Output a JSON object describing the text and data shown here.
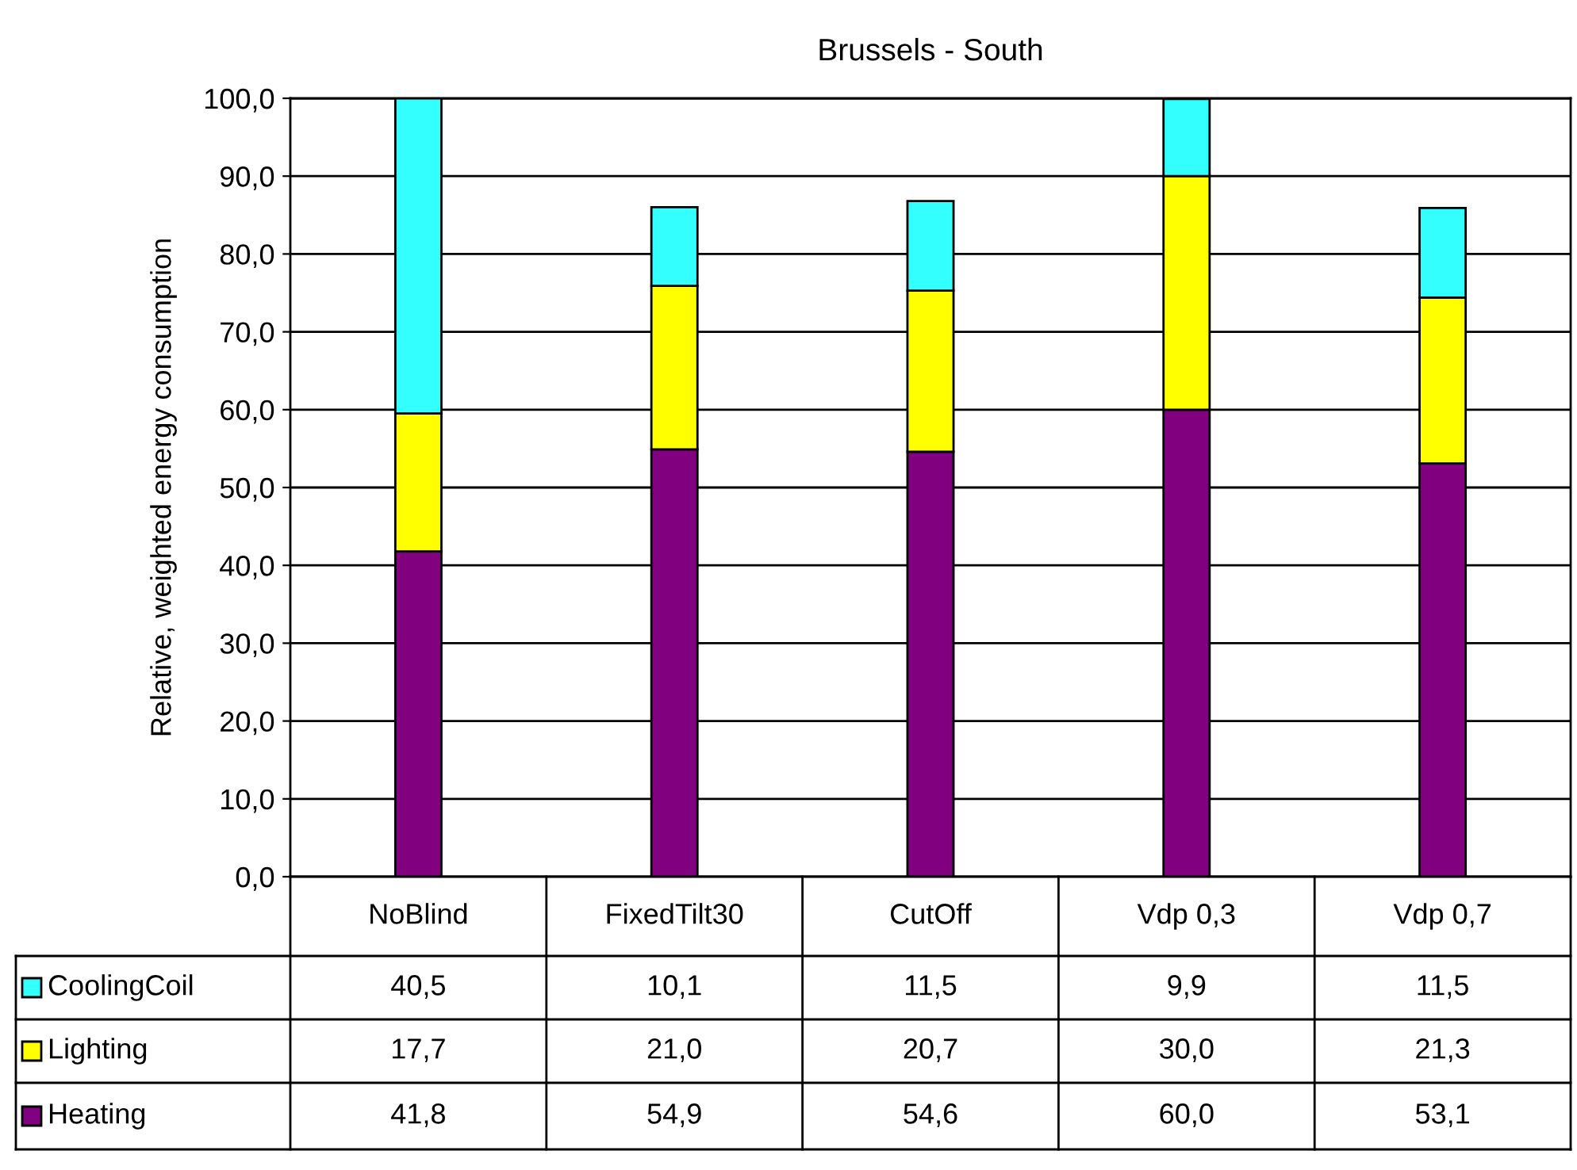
{
  "chart_data": {
    "type": "bar",
    "title": "Brussels - South",
    "ylabel": "Relative, weighted energy consumption",
    "stacked": true,
    "categories": [
      "NoBlind",
      "FixedTilt30",
      "CutOff",
      "Vdp 0,3",
      "Vdp 0,7"
    ],
    "series": [
      {
        "name": "Heating",
        "color": "#800080",
        "values": [
          41.8,
          54.9,
          54.6,
          60.0,
          53.1
        ],
        "value_labels": [
          "41,8",
          "54,9",
          "54,6",
          "60,0",
          "53,1"
        ]
      },
      {
        "name": "Lighting",
        "color": "#ffff00",
        "values": [
          17.7,
          21.0,
          20.7,
          30.0,
          21.3
        ],
        "value_labels": [
          "17,7",
          "21,0",
          "20,7",
          "30,0",
          "21,3"
        ]
      },
      {
        "name": "CoolingCoil",
        "color": "#33ffff",
        "values": [
          40.5,
          10.1,
          11.5,
          9.9,
          11.5
        ],
        "value_labels": [
          "40,5",
          "10,1",
          "11,5",
          "9,9",
          "11,5"
        ]
      }
    ],
    "ylim": [
      0,
      100
    ],
    "yticks": [
      {
        "value": 0,
        "label": "0,0"
      },
      {
        "value": 10,
        "label": "10,0"
      },
      {
        "value": 20,
        "label": "20,0"
      },
      {
        "value": 30,
        "label": "30,0"
      },
      {
        "value": 40,
        "label": "40,0"
      },
      {
        "value": 50,
        "label": "50,0"
      },
      {
        "value": 60,
        "label": "60,0"
      },
      {
        "value": 70,
        "label": "70,0"
      },
      {
        "value": 80,
        "label": "80,0"
      },
      {
        "value": 90,
        "label": "90,0"
      },
      {
        "value": 100,
        "label": "100,0"
      }
    ],
    "grid": "y",
    "legend": "bottom left"
  }
}
